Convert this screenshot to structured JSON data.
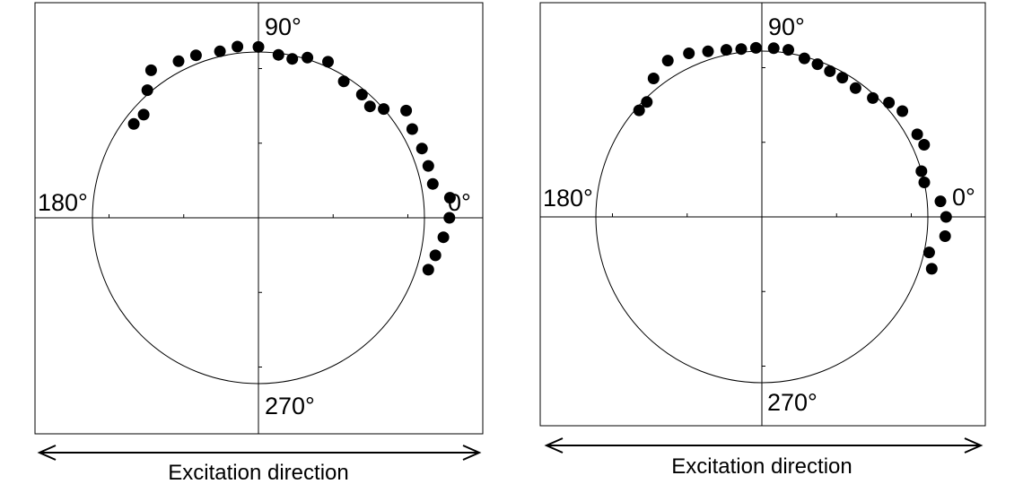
{
  "chart_data": [
    {
      "type": "scatter",
      "coordinate_system": "polar",
      "angle_labels": [
        "90°",
        "180°",
        "270°",
        "0°"
      ],
      "xlabel": "Excitation direction",
      "radial_range": [
        0,
        1.2
      ],
      "reference_circle_radius": 1.0,
      "grid": false,
      "points": [
        {
          "angle_deg": 143,
          "r": 0.94
        },
        {
          "angle_deg": 138,
          "r": 0.93
        },
        {
          "angle_deg": 131,
          "r": 1.02
        },
        {
          "angle_deg": 126,
          "r": 1.1
        },
        {
          "angle_deg": 117,
          "r": 1.06
        },
        {
          "angle_deg": 111,
          "r": 1.05
        },
        {
          "angle_deg": 103,
          "r": 1.03
        },
        {
          "angle_deg": 97,
          "r": 1.04
        },
        {
          "angle_deg": 90,
          "r": 1.03
        },
        {
          "angle_deg": 83,
          "r": 0.99
        },
        {
          "angle_deg": 78,
          "r": 0.98
        },
        {
          "angle_deg": 73,
          "r": 1.01
        },
        {
          "angle_deg": 66,
          "r": 1.03
        },
        {
          "angle_deg": 58,
          "r": 0.97
        },
        {
          "angle_deg": 50,
          "r": 0.97
        },
        {
          "angle_deg": 45,
          "r": 0.95
        },
        {
          "angle_deg": 41,
          "r": 1.0
        },
        {
          "angle_deg": 36,
          "r": 1.1
        },
        {
          "angle_deg": 30,
          "r": 1.07
        },
        {
          "angle_deg": 23,
          "r": 1.07
        },
        {
          "angle_deg": 17,
          "r": 1.07
        },
        {
          "angle_deg": 11,
          "r": 1.07
        },
        {
          "angle_deg": 6,
          "r": 1.16
        },
        {
          "angle_deg": 0,
          "r": 1.15
        },
        {
          "angle_deg": -6,
          "r": 1.12
        },
        {
          "angle_deg": -12,
          "r": 1.09
        },
        {
          "angle_deg": -17,
          "r": 1.07
        }
      ]
    },
    {
      "type": "scatter",
      "coordinate_system": "polar",
      "angle_labels": [
        "90°",
        "180°",
        "270°",
        "0°"
      ],
      "xlabel": "Excitation direction",
      "radial_range": [
        0,
        1.2
      ],
      "reference_circle_radius": 1.0,
      "grid": false,
      "points": [
        {
          "angle_deg": 139,
          "r": 0.98
        },
        {
          "angle_deg": 135,
          "r": 0.98
        },
        {
          "angle_deg": 128,
          "r": 1.06
        },
        {
          "angle_deg": 121,
          "r": 1.1
        },
        {
          "angle_deg": 114,
          "r": 1.08
        },
        {
          "angle_deg": 108,
          "r": 1.05
        },
        {
          "angle_deg": 102,
          "r": 1.03
        },
        {
          "angle_deg": 97,
          "r": 1.02
        },
        {
          "angle_deg": 92,
          "r": 1.02
        },
        {
          "angle_deg": 86,
          "r": 1.02
        },
        {
          "angle_deg": 81,
          "r": 1.02
        },
        {
          "angle_deg": 75,
          "r": 0.99
        },
        {
          "angle_deg": 70,
          "r": 0.98
        },
        {
          "angle_deg": 65,
          "r": 0.97
        },
        {
          "angle_deg": 60,
          "r": 0.97
        },
        {
          "angle_deg": 54,
          "r": 0.96
        },
        {
          "angle_deg": 47,
          "r": 0.98
        },
        {
          "angle_deg": 42,
          "r": 1.03
        },
        {
          "angle_deg": 37,
          "r": 1.06
        },
        {
          "angle_deg": 28,
          "r": 1.06
        },
        {
          "angle_deg": 24,
          "r": 1.07
        },
        {
          "angle_deg": 16,
          "r": 1.0
        },
        {
          "angle_deg": 12,
          "r": 1.0
        },
        {
          "angle_deg": 5,
          "r": 1.08
        },
        {
          "angle_deg": 0,
          "r": 1.11
        },
        {
          "angle_deg": -6,
          "r": 1.11
        },
        {
          "angle_deg": -12,
          "r": 1.03
        },
        {
          "angle_deg": -17,
          "r": 1.07
        }
      ]
    }
  ]
}
